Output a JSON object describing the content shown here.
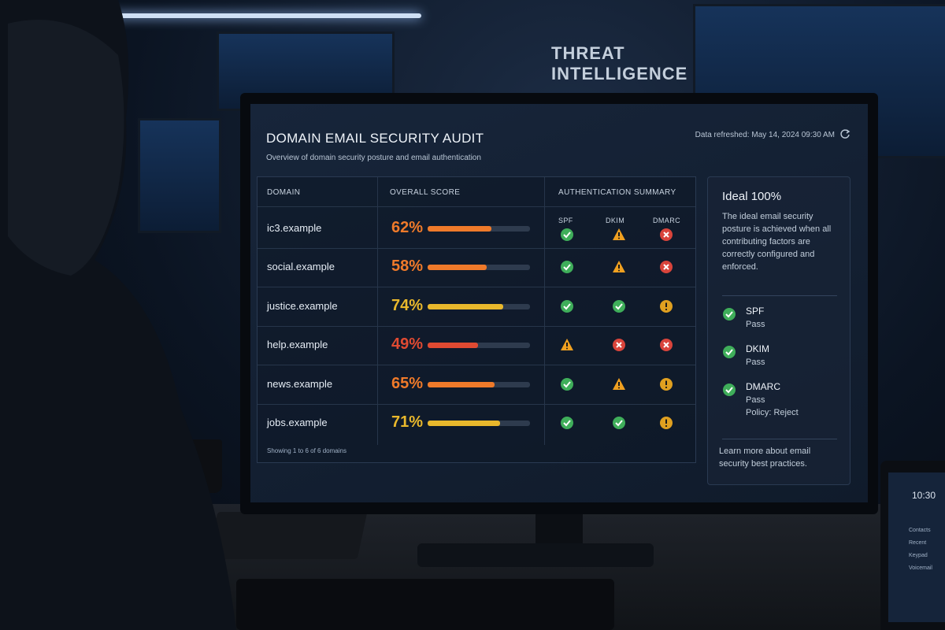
{
  "background": {
    "wall_sign": "THREAT INTELLIGENCE"
  },
  "header": {
    "title": "DOMAIN EMAIL SECURITY AUDIT",
    "subtitle": "Overview of domain security posture and email authentication",
    "refreshed": "Data refreshed: May 14, 2024 09:30 AM"
  },
  "table": {
    "columns": [
      "DOMAIN",
      "OVERALL SCORE",
      "AUTHENTICATION SUMMARY"
    ],
    "auth_columns": [
      "SPF",
      "DKIM",
      "DMARC"
    ],
    "rows": [
      {
        "domain": "ic3.example",
        "score": {
          "value": 62,
          "label": "62%"
        },
        "color": "#ef7a2a",
        "spf": "pass",
        "dkim": "warn",
        "dmarc": "fail"
      },
      {
        "domain": "social.example",
        "score": {
          "value": 58,
          "label": "58%"
        },
        "color": "#ef7a2a",
        "spf": "pass",
        "dkim": "warn",
        "dmarc": "fail"
      },
      {
        "domain": "justice.example",
        "score": {
          "value": 74,
          "label": "74%"
        },
        "color": "#e9b82c",
        "spf": "pass",
        "dkim": "pass",
        "dmarc": "caution"
      },
      {
        "domain": "help.example",
        "score": {
          "value": 49,
          "label": "49%"
        },
        "color": "#e04a32",
        "spf": "warn",
        "dkim": "fail",
        "dmarc": "fail"
      },
      {
        "domain": "news.example",
        "score": {
          "value": 65,
          "label": "65%"
        },
        "color": "#ef7a2a",
        "spf": "pass",
        "dkim": "warn",
        "dmarc": "caution"
      },
      {
        "domain": "jobs.example",
        "score": {
          "value": 71,
          "label": "71%"
        },
        "color": "#e9b82c",
        "spf": "pass",
        "dkim": "pass",
        "dmarc": "caution"
      }
    ],
    "footer": "Showing 1 to 6 of 6 domains"
  },
  "panel": {
    "ideal": {
      "value": 100,
      "label": "Ideal 100%"
    },
    "text": "The ideal email security posture is achieved when all contributing factors are correctly configured and enforced.",
    "items": [
      {
        "name": "SPF",
        "status": "Pass"
      },
      {
        "name": "DKIM",
        "status": "Pass"
      },
      {
        "name": "DMARC",
        "status": "Pass",
        "detail": "Policy: Reject"
      }
    ],
    "link": "Learn more about email security best practices."
  },
  "phone": {
    "time": "10:30",
    "menu": [
      "Contacts",
      "Recent",
      "Keypad",
      "Voicemail"
    ]
  }
}
